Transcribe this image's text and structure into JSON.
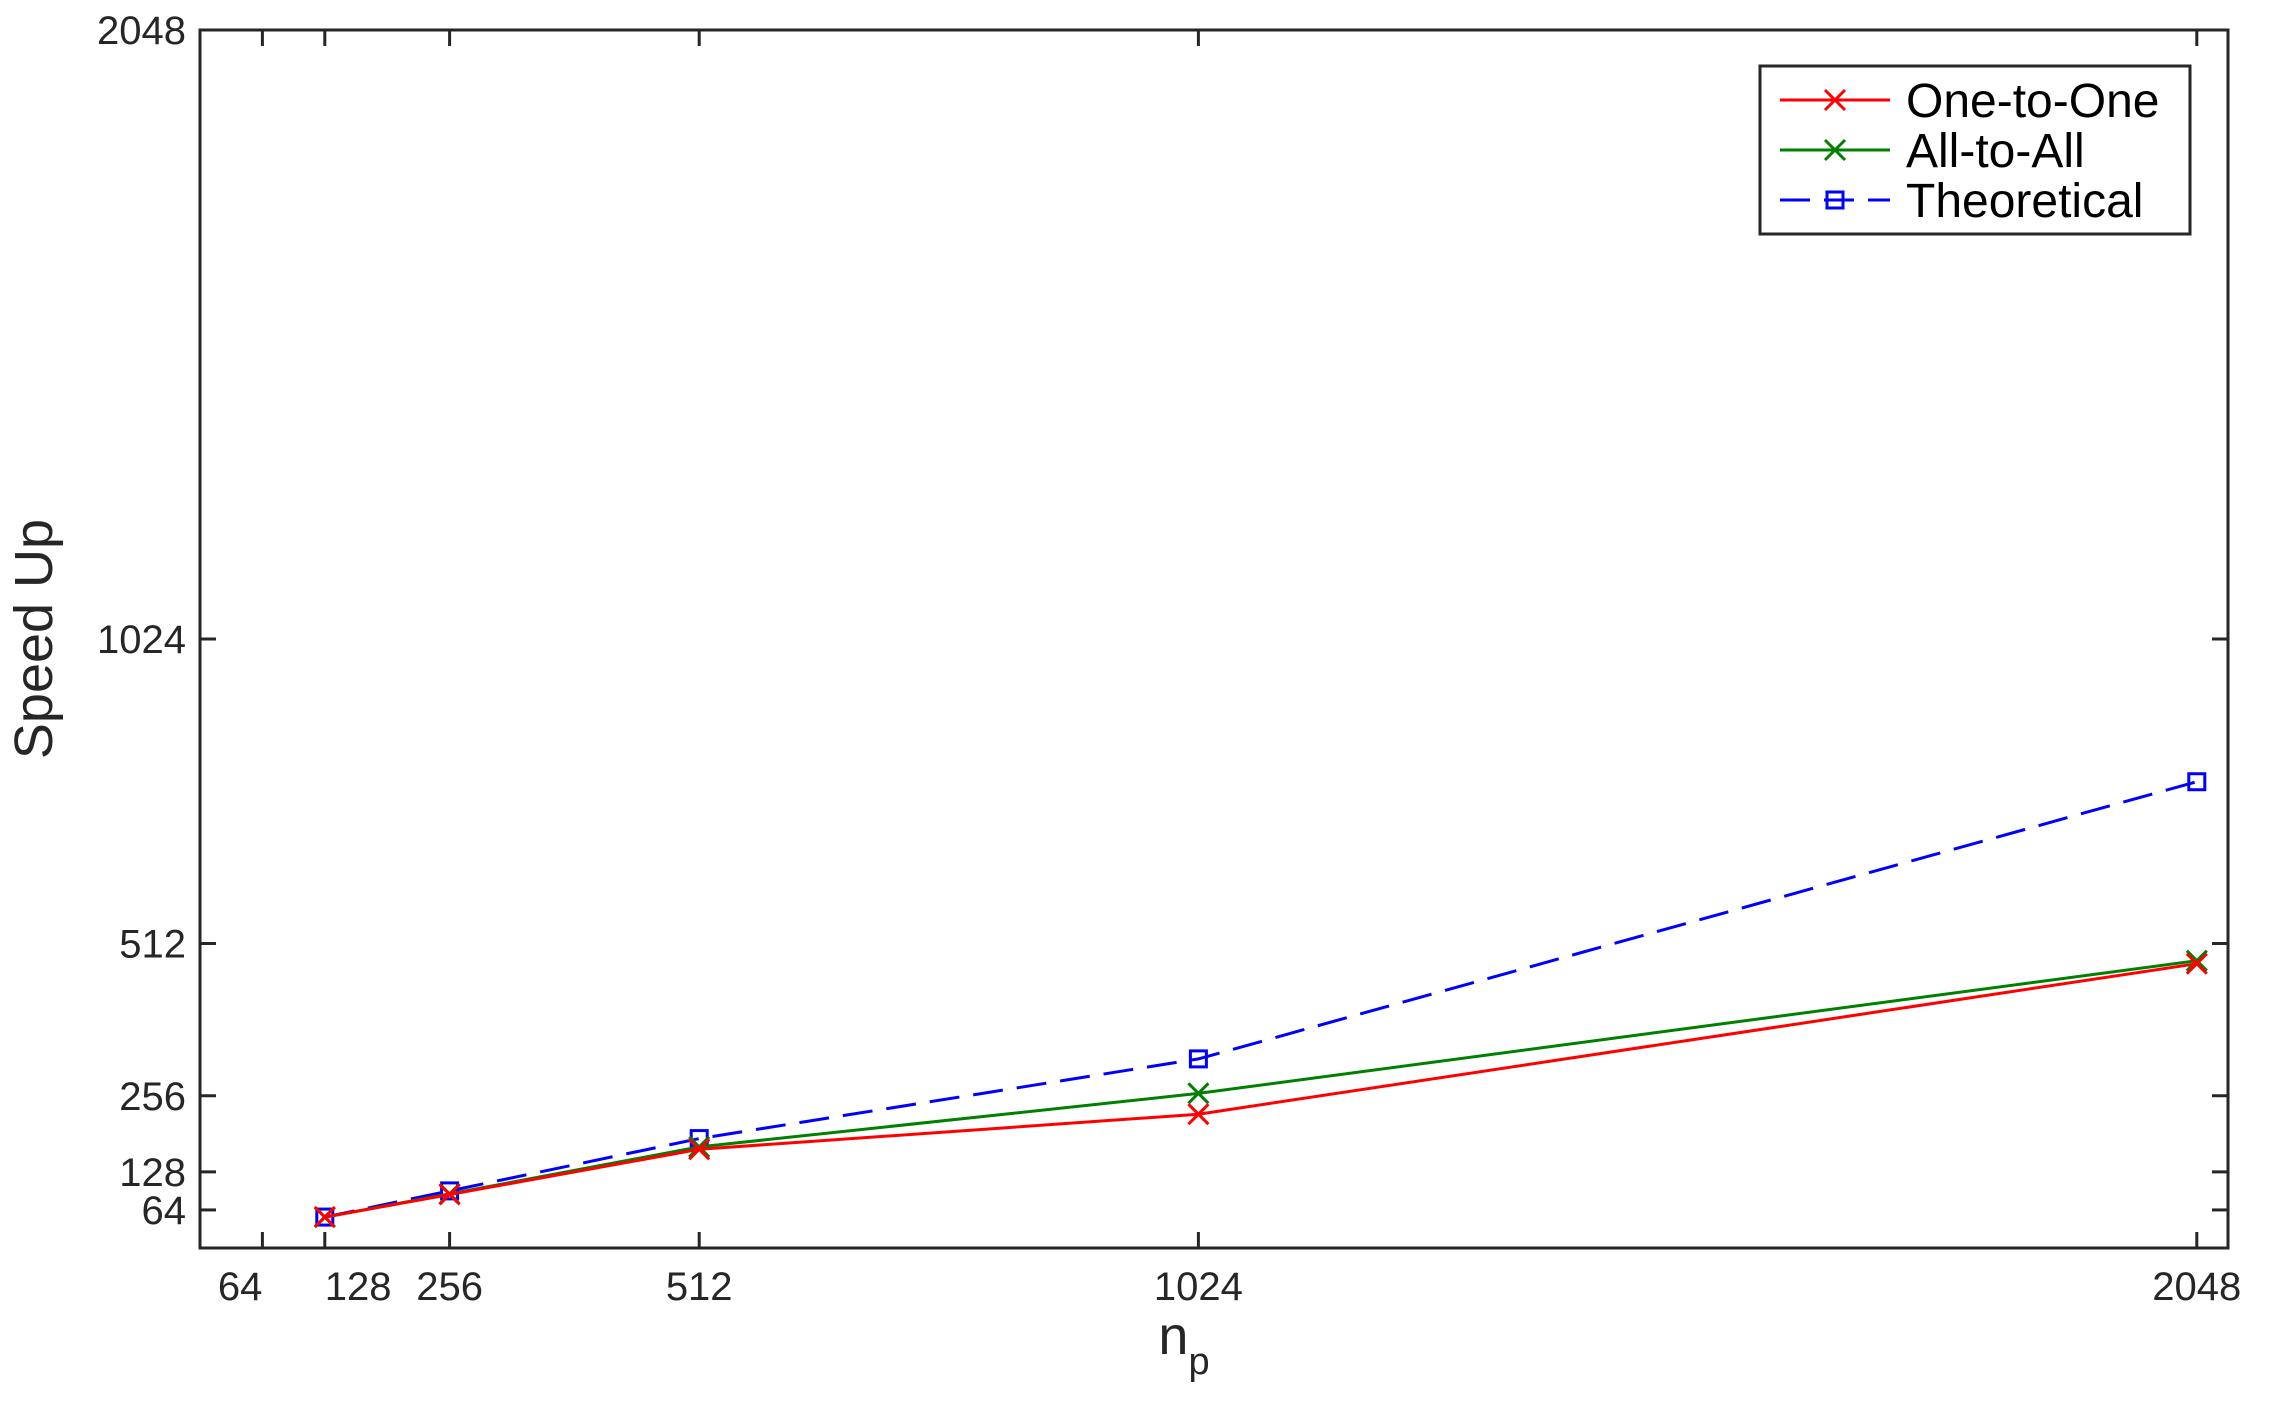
{
  "chart_data": {
    "type": "line",
    "xlabel": "n",
    "xlabel_subscript": "p",
    "ylabel": "Speed Up",
    "xlim": [
      0,
      2080
    ],
    "ylim": [
      0,
      2048
    ],
    "x_ticks": [
      64,
      128,
      256,
      512,
      1024,
      2048
    ],
    "x_tick_labels": [
      "64",
      "128",
      "256",
      "512",
      "1024",
      "2048"
    ],
    "y_ticks": [
      64,
      128,
      256,
      512,
      1024,
      2048
    ],
    "y_tick_labels": [
      "64",
      "128",
      "256",
      "512",
      "1024",
      "2048"
    ],
    "grid": false,
    "legend_position": "top-right",
    "x": [
      128,
      256,
      512,
      1024,
      2048
    ],
    "series": [
      {
        "name": "One-to-One",
        "color": "#ff0000",
        "dash": "solid",
        "marker": "x",
        "values": [
          52,
          90,
          166,
          225,
          478
        ]
      },
      {
        "name": "All-to-All",
        "color": "#008000",
        "dash": "solid",
        "marker": "x",
        "values": [
          52,
          91,
          170,
          260,
          483
        ]
      },
      {
        "name": "Theoretical",
        "color": "#0000ff",
        "dash": "dashed",
        "marker": "square",
        "values": [
          52,
          96,
          184,
          318,
          784
        ]
      }
    ]
  }
}
